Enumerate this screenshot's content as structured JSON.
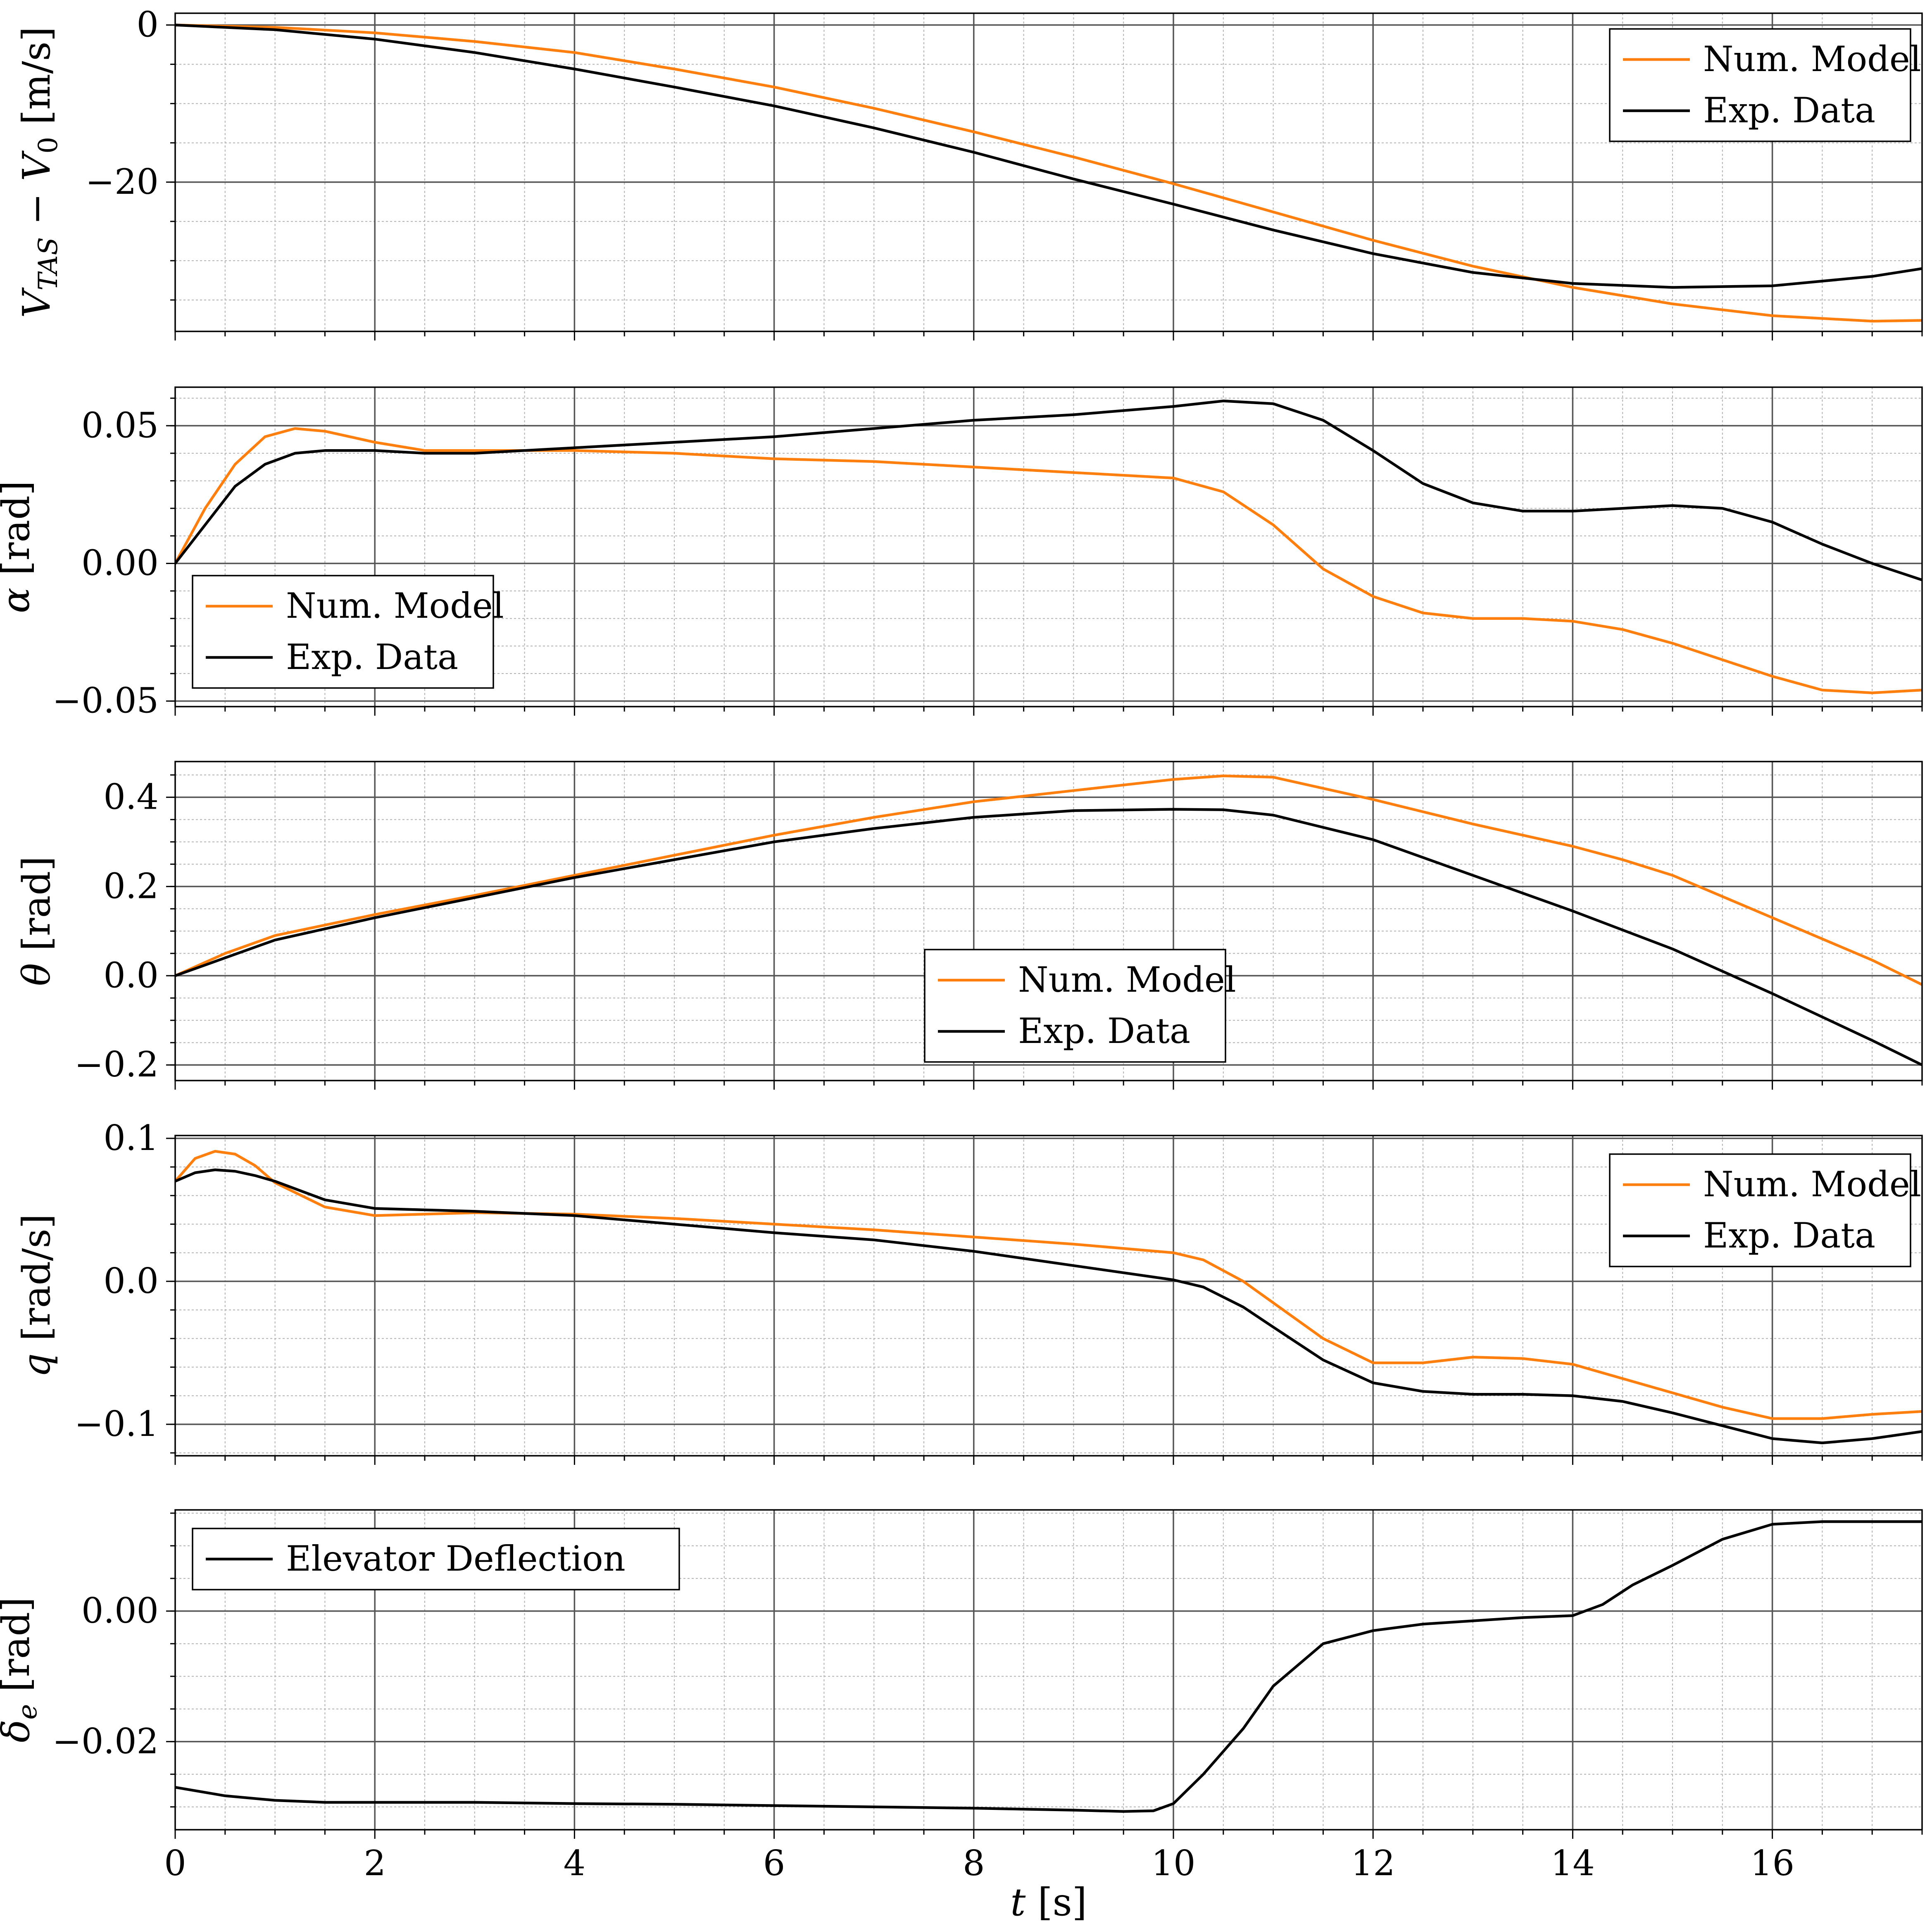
{
  "chart_data": [
    {
      "type": "line",
      "ylabel": "V_TAS − V_0 [m/s]",
      "xlim": [
        0,
        17.5
      ],
      "ylim": [
        -39,
        1.5
      ],
      "yticks": [
        0,
        -20
      ],
      "yticklabels": [
        "0",
        "−20"
      ],
      "grid": true,
      "legend_position": "top-right",
      "series": [
        {
          "name": "Num. Model",
          "color": "#ff7f0e",
          "x": [
            0,
            1,
            2,
            3,
            4,
            5,
            6,
            7,
            8,
            9,
            10,
            11,
            12,
            13,
            14,
            15,
            16,
            17,
            17.5
          ],
          "y": [
            0,
            -0.3,
            -1,
            -2.1,
            -3.5,
            -5.6,
            -7.9,
            -10.6,
            -13.6,
            -16.8,
            -20.2,
            -23.8,
            -27.4,
            -30.7,
            -33.4,
            -35.5,
            -37,
            -37.7,
            -37.6
          ]
        },
        {
          "name": "Exp. Data",
          "color": "#000000",
          "x": [
            0,
            1,
            2,
            3,
            4,
            5,
            6,
            7,
            8,
            9,
            10,
            11,
            12,
            13,
            14,
            15,
            16,
            17,
            17.5
          ],
          "y": [
            0,
            -0.6,
            -1.8,
            -3.5,
            -5.6,
            -7.9,
            -10.3,
            -13.1,
            -16.2,
            -19.6,
            -22.8,
            -26.1,
            -29.1,
            -31.5,
            -32.9,
            -33.4,
            -33.2,
            -32,
            -31
          ]
        }
      ]
    },
    {
      "type": "line",
      "ylabel": "α [rad]",
      "xlim": [
        0,
        17.5
      ],
      "ylim": [
        -0.052,
        0.064
      ],
      "yticks": [
        0.05,
        0,
        -0.05
      ],
      "yticklabels": [
        "0.05",
        "0.00",
        "−0.05"
      ],
      "grid": true,
      "legend_position": "lower-left",
      "series": [
        {
          "name": "Num. Model",
          "color": "#ff7f0e",
          "x": [
            0,
            0.3,
            0.6,
            0.9,
            1.2,
            1.5,
            2,
            2.5,
            3,
            4,
            5,
            6,
            7,
            8,
            9,
            10,
            10.5,
            11,
            11.5,
            12,
            12.5,
            13,
            13.5,
            14,
            14.5,
            15,
            15.5,
            16,
            16.5,
            17,
            17.5
          ],
          "y": [
            0,
            0.02,
            0.036,
            0.046,
            0.049,
            0.048,
            0.044,
            0.041,
            0.041,
            0.041,
            0.04,
            0.038,
            0.037,
            0.035,
            0.033,
            0.031,
            0.026,
            0.014,
            -0.002,
            -0.012,
            -0.018,
            -0.02,
            -0.02,
            -0.021,
            -0.024,
            -0.029,
            -0.035,
            -0.041,
            -0.046,
            -0.047,
            -0.046
          ]
        },
        {
          "name": "Exp. Data",
          "color": "#000000",
          "x": [
            0,
            0.3,
            0.6,
            0.9,
            1.2,
            1.5,
            2,
            2.5,
            3,
            4,
            5,
            6,
            7,
            8,
            9,
            10,
            10.5,
            11,
            11.5,
            12,
            12.5,
            13,
            13.5,
            14,
            14.5,
            15,
            15.5,
            16,
            16.5,
            17,
            17.5
          ],
          "y": [
            0,
            0.014,
            0.028,
            0.036,
            0.04,
            0.041,
            0.041,
            0.04,
            0.04,
            0.042,
            0.044,
            0.046,
            0.049,
            0.052,
            0.054,
            0.057,
            0.059,
            0.058,
            0.052,
            0.041,
            0.029,
            0.022,
            0.019,
            0.019,
            0.02,
            0.021,
            0.02,
            0.015,
            0.007,
            0,
            -0.006
          ]
        }
      ]
    },
    {
      "type": "line",
      "ylabel": "θ [rad]",
      "xlim": [
        0,
        17.5
      ],
      "ylim": [
        -0.235,
        0.48
      ],
      "yticks": [
        0.4,
        0.2,
        0,
        -0.2
      ],
      "yticklabels": [
        "0.4",
        "0.2",
        "0.0",
        "−0.2"
      ],
      "grid": true,
      "legend_position": "lower-center",
      "series": [
        {
          "name": "Num. Model",
          "color": "#ff7f0e",
          "x": [
            0,
            0.5,
            1,
            2,
            3,
            4,
            5,
            6,
            7,
            8,
            9,
            10,
            10.5,
            11,
            12,
            13,
            14,
            14.5,
            15,
            16,
            17,
            17.5
          ],
          "y": [
            0,
            0.05,
            0.09,
            0.137,
            0.18,
            0.225,
            0.27,
            0.315,
            0.355,
            0.39,
            0.415,
            0.44,
            0.448,
            0.445,
            0.395,
            0.34,
            0.29,
            0.26,
            0.225,
            0.13,
            0.035,
            -0.02
          ]
        },
        {
          "name": "Exp. Data",
          "color": "#000000",
          "x": [
            0,
            0.5,
            1,
            2,
            3,
            4,
            5,
            6,
            7,
            8,
            9,
            10,
            10.5,
            11,
            12,
            13,
            14,
            15,
            16,
            17,
            17.5
          ],
          "y": [
            0,
            0.04,
            0.08,
            0.13,
            0.175,
            0.22,
            0.26,
            0.3,
            0.33,
            0.355,
            0.37,
            0.373,
            0.372,
            0.36,
            0.305,
            0.225,
            0.145,
            0.06,
            -0.04,
            -0.145,
            -0.2
          ]
        }
      ]
    },
    {
      "type": "line",
      "ylabel": "q [rad/s]",
      "xlim": [
        0,
        17.5
      ],
      "ylim": [
        -0.122,
        0.102
      ],
      "yticks": [
        0.1,
        0,
        -0.1
      ],
      "yticklabels": [
        "0.1",
        "0.0",
        "−0.1"
      ],
      "grid": true,
      "legend_position": "top-right",
      "series": [
        {
          "name": "Num. Model",
          "color": "#ff7f0e",
          "x": [
            0,
            0.2,
            0.4,
            0.6,
            0.8,
            1,
            1.5,
            2,
            3,
            4,
            5,
            6,
            7,
            8,
            9,
            10,
            10.3,
            10.7,
            11,
            11.5,
            12,
            12.5,
            13,
            13.5,
            14,
            14.5,
            15,
            15.5,
            16,
            16.5,
            17,
            17.5
          ],
          "y": [
            0.07,
            0.086,
            0.091,
            0.089,
            0.081,
            0.069,
            0.052,
            0.046,
            0.048,
            0.047,
            0.044,
            0.04,
            0.036,
            0.031,
            0.026,
            0.02,
            0.015,
            0,
            -0.015,
            -0.04,
            -0.057,
            -0.057,
            -0.053,
            -0.054,
            -0.058,
            -0.068,
            -0.078,
            -0.088,
            -0.096,
            -0.096,
            -0.093,
            -0.091
          ]
        },
        {
          "name": "Exp. Data",
          "color": "#000000",
          "x": [
            0,
            0.2,
            0.4,
            0.6,
            0.8,
            1,
            1.5,
            2,
            3,
            4,
            5,
            6,
            7,
            8,
            9,
            10,
            10.3,
            10.7,
            11,
            11.5,
            12,
            12.5,
            13,
            13.5,
            14,
            14.5,
            15,
            15.5,
            16,
            16.5,
            17,
            17.5
          ],
          "y": [
            0.07,
            0.076,
            0.078,
            0.077,
            0.074,
            0.07,
            0.057,
            0.051,
            0.049,
            0.046,
            0.04,
            0.034,
            0.029,
            0.021,
            0.011,
            0.001,
            -0.004,
            -0.018,
            -0.032,
            -0.055,
            -0.071,
            -0.077,
            -0.079,
            -0.079,
            -0.08,
            -0.084,
            -0.092,
            -0.101,
            -0.11,
            -0.113,
            -0.11,
            -0.105
          ]
        }
      ]
    },
    {
      "type": "line",
      "ylabel": "δ_e [rad]",
      "xlabel": "t [s]",
      "xlim": [
        0,
        17.5
      ],
      "xticks": [
        0,
        2,
        4,
        6,
        8,
        10,
        12,
        14,
        16
      ],
      "xticklabels": [
        "0",
        "2",
        "4",
        "6",
        "8",
        "10",
        "12",
        "14",
        "16"
      ],
      "ylim": [
        -0.0335,
        0.0155
      ],
      "yticks": [
        0,
        -0.02
      ],
      "yticklabels": [
        "0.00",
        "−0.02"
      ],
      "grid": true,
      "legend_position": "top-left",
      "series": [
        {
          "name": "Elevator Deflection",
          "color": "#000000",
          "x": [
            0,
            0.5,
            1,
            1.5,
            2,
            3,
            4,
            5,
            6,
            7,
            8,
            9,
            9.5,
            9.8,
            10,
            10.3,
            10.7,
            11,
            11.5,
            12,
            12.5,
            13,
            13.5,
            14,
            14.3,
            14.6,
            15,
            15.5,
            16,
            16.5,
            17,
            17.5
          ],
          "y": [
            -0.027,
            -0.0283,
            -0.029,
            -0.0293,
            -0.0293,
            -0.0293,
            -0.0295,
            -0.0296,
            -0.0298,
            -0.03,
            -0.0302,
            -0.0305,
            -0.0307,
            -0.0306,
            -0.0295,
            -0.025,
            -0.018,
            -0.0115,
            -0.005,
            -0.003,
            -0.002,
            -0.0015,
            -0.001,
            -0.0007,
            0.001,
            0.004,
            0.007,
            0.011,
            0.0133,
            0.0137,
            0.0137,
            0.0137
          ]
        }
      ]
    }
  ]
}
